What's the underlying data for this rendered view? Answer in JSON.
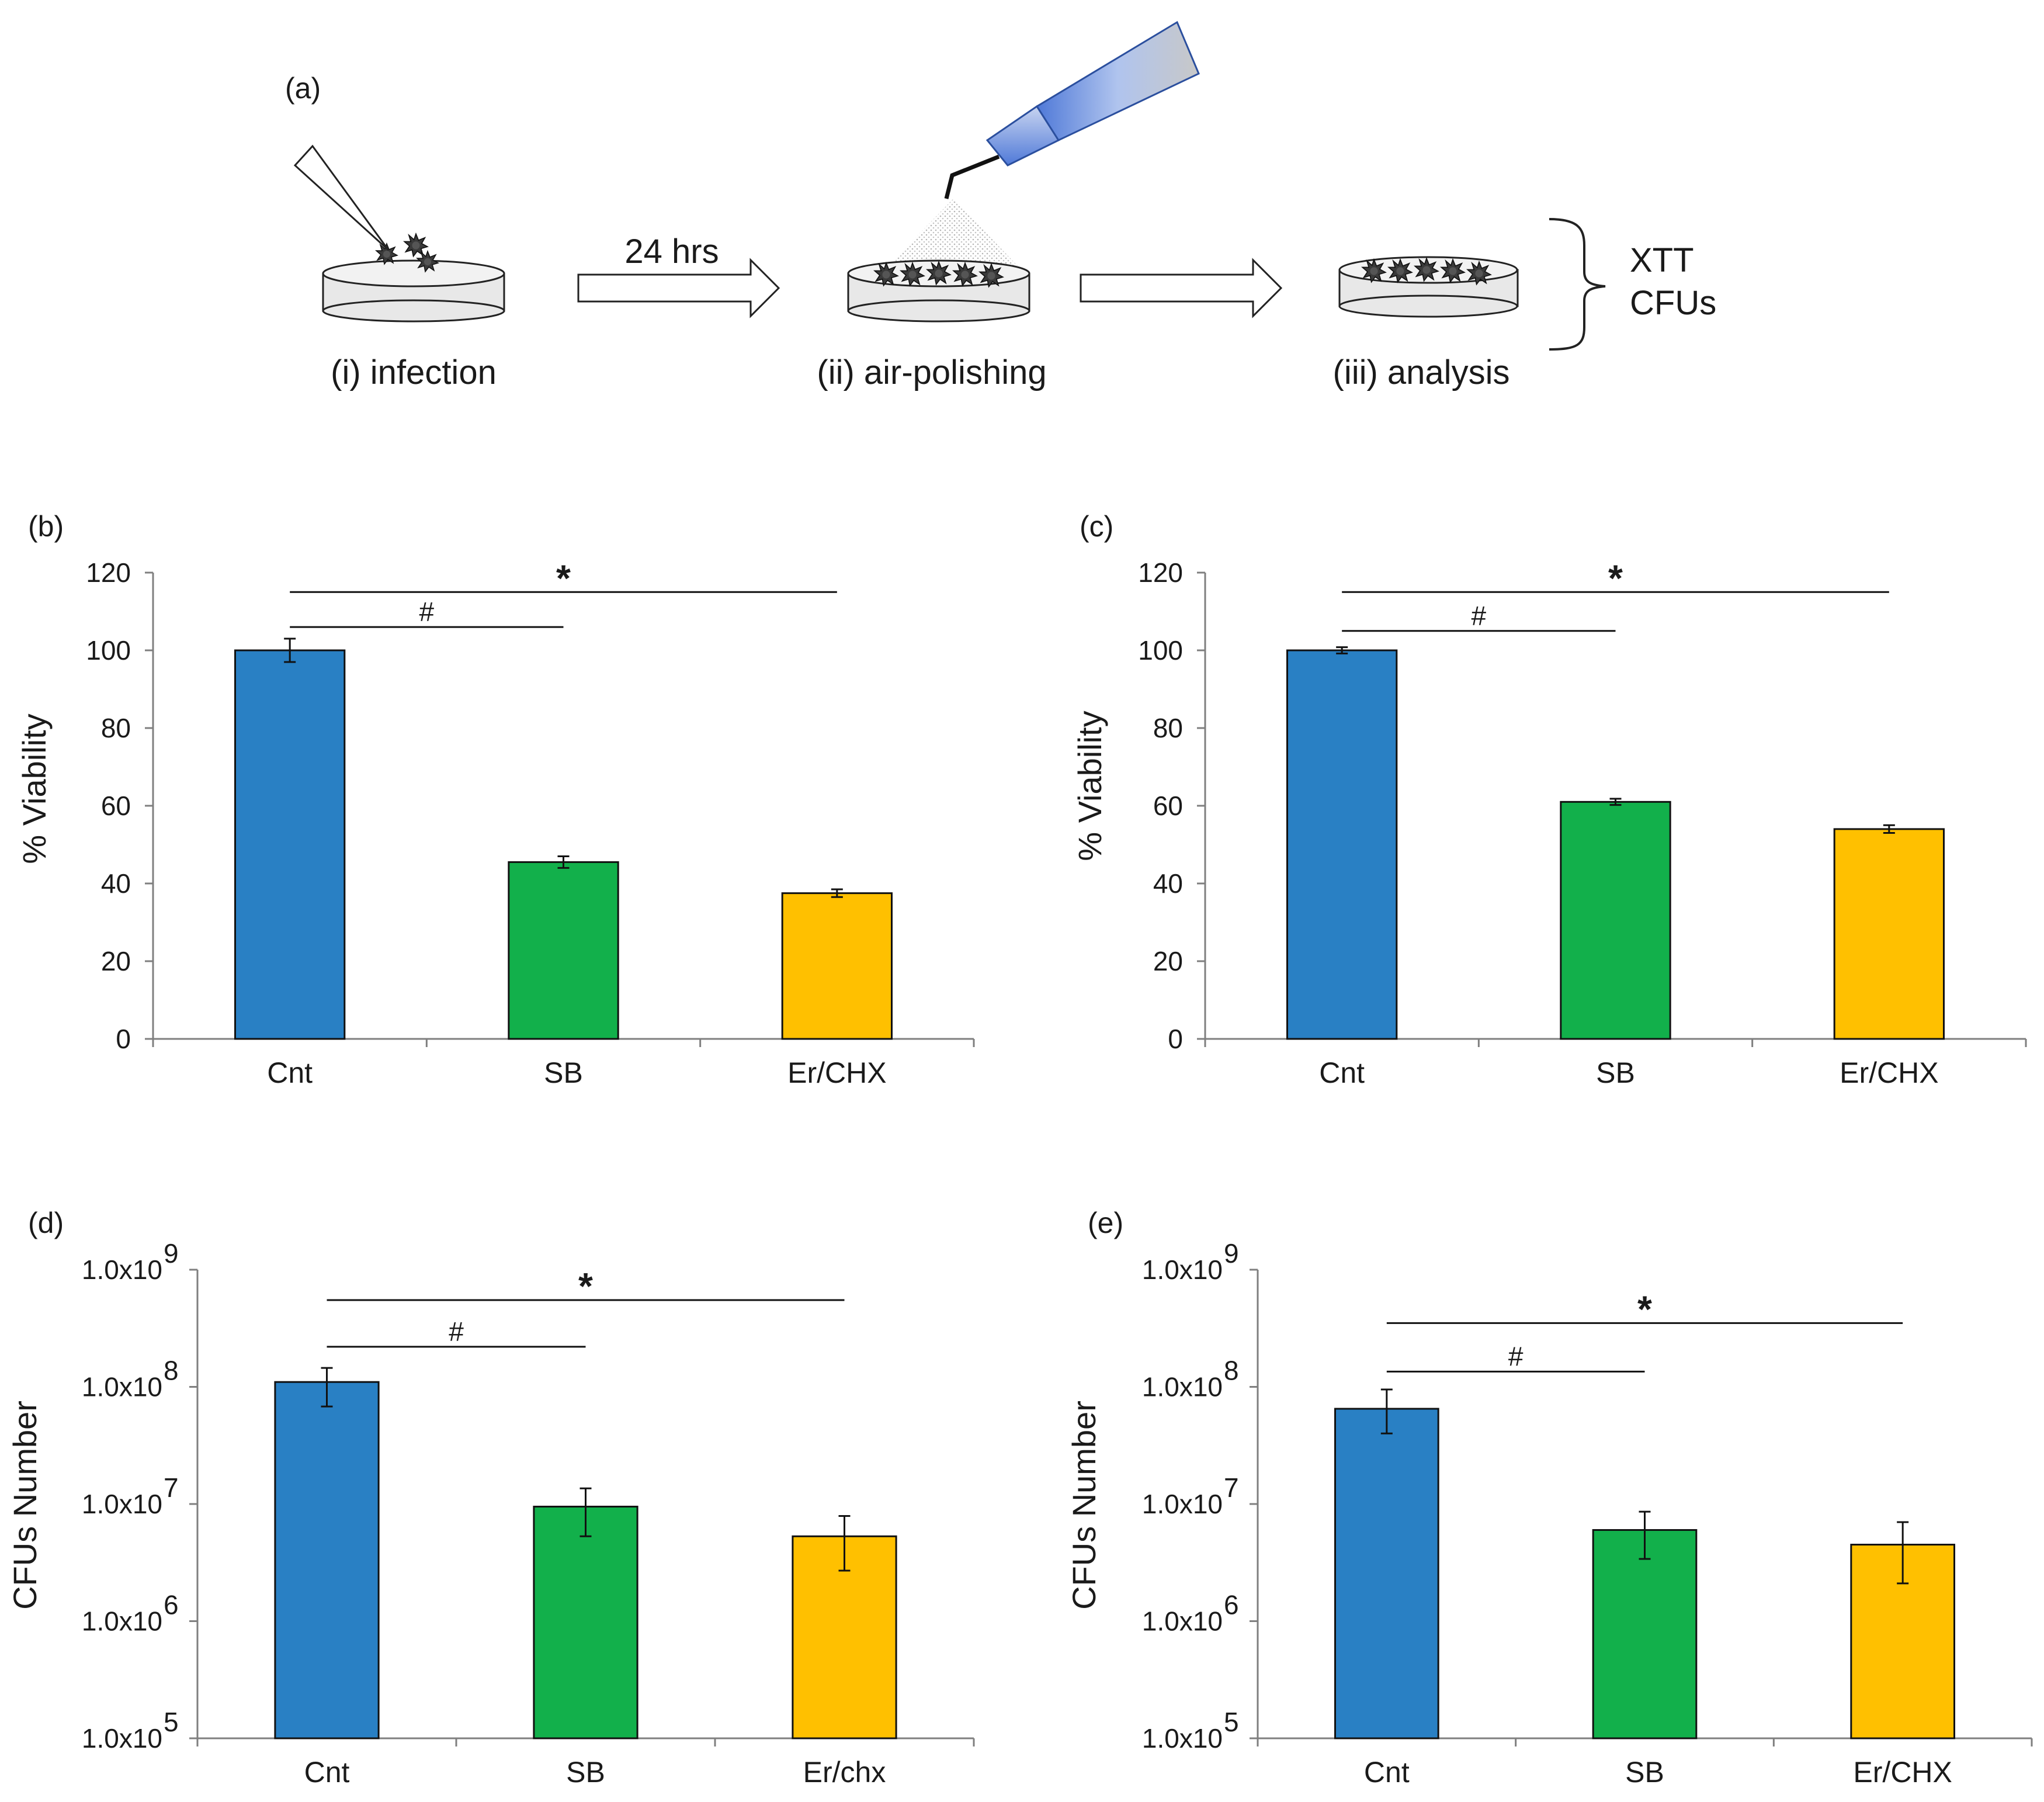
{
  "figure": {
    "panel_a": {
      "label": "(a)",
      "steps": [
        "(i) infection",
        "(ii) air-polishing",
        "(iii) analysis"
      ],
      "arrow_label": "24 hrs",
      "analysis_methods": [
        "XTT",
        "CFUs"
      ]
    }
  },
  "colors": {
    "Cnt": "#2980c4",
    "SB": "#12b04b",
    "Er": "#ffc000",
    "axis": "#7f7f7f",
    "text": "#1a1a1a"
  },
  "chart_data": [
    {
      "panel": "(b)",
      "type": "bar",
      "scale": "linear",
      "ylabel": "% Viability",
      "xlabel": "",
      "ylim": [
        0,
        120
      ],
      "yticks": [
        "0",
        "20",
        "40",
        "60",
        "80",
        "100",
        "120"
      ],
      "categories": [
        "Cnt",
        "SB",
        "Er/CHX"
      ],
      "values": [
        100,
        45.5,
        37.5
      ],
      "errors": [
        3,
        1.5,
        1
      ],
      "significance": [
        {
          "symbol": "*",
          "from": "Cnt",
          "to": "Er/CHX",
          "y": 115
        },
        {
          "symbol": "#",
          "from": "Cnt",
          "to": "SB",
          "y": 106
        }
      ]
    },
    {
      "panel": "(c)",
      "type": "bar",
      "scale": "linear",
      "ylabel": "% Viability",
      "xlabel": "",
      "ylim": [
        0,
        120
      ],
      "yticks": [
        "0",
        "20",
        "40",
        "60",
        "80",
        "100",
        "120"
      ],
      "categories": [
        "Cnt",
        "SB",
        "Er/CHX"
      ],
      "values": [
        100,
        61,
        54
      ],
      "errors": [
        0.8,
        0.8,
        1
      ],
      "significance": [
        {
          "symbol": "*",
          "from": "Cnt",
          "to": "Er/CHX",
          "y": 115
        },
        {
          "symbol": "#",
          "from": "Cnt",
          "to": "SB",
          "y": 105
        }
      ]
    },
    {
      "panel": "(d)",
      "type": "bar",
      "scale": "log",
      "ylabel": "CFUs Number",
      "xlabel": "",
      "ylim_exponents": [
        5,
        9
      ],
      "ytick_mantissa": "1.0x10",
      "ytick_exponents": [
        "5",
        "6",
        "7",
        "8",
        "9"
      ],
      "categories": [
        "Cnt",
        "SB",
        "Er/chx"
      ],
      "values": [
        110000000,
        9500000,
        5300000
      ],
      "error_bounds": [
        [
          68000000,
          145000000
        ],
        [
          5300000,
          13600000
        ],
        [
          2700000,
          7900000
        ]
      ],
      "significance": [
        {
          "symbol": "*",
          "from": "Cnt",
          "to": "Er/chx",
          "y": 550000000
        },
        {
          "symbol": "#",
          "from": "Cnt",
          "to": "SB",
          "y": 220000000
        }
      ]
    },
    {
      "panel": "(e)",
      "type": "bar",
      "scale": "log",
      "ylabel": "CFUs Number",
      "xlabel": "",
      "ylim_exponents": [
        5,
        9
      ],
      "ytick_mantissa": "1.0x10",
      "ytick_exponents": [
        "5",
        "6",
        "7",
        "8",
        "9"
      ],
      "categories": [
        "Cnt",
        "SB",
        "Er/CHX"
      ],
      "values": [
        65000000,
        6000000,
        4500000
      ],
      "error_bounds": [
        [
          40000000,
          95000000
        ],
        [
          3400000,
          8600000
        ],
        [
          2100000,
          7000000
        ]
      ],
      "significance": [
        {
          "symbol": "*",
          "from": "Cnt",
          "to": "Er/CHX",
          "y": 350000000
        },
        {
          "symbol": "#",
          "from": "Cnt",
          "to": "SB",
          "y": 135000000
        }
      ]
    }
  ]
}
